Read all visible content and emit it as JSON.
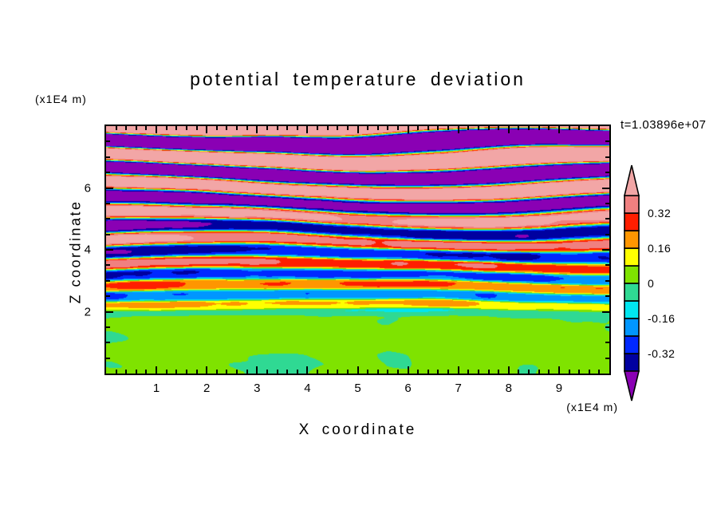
{
  "title": "potential temperature deviation",
  "time_label": "t=1.03896e+07",
  "axes": {
    "x": {
      "label": "X coordinate",
      "unit": "(x1E4 m)",
      "range": [
        0,
        10
      ],
      "major_ticks": [
        1,
        2,
        3,
        4,
        5,
        6,
        7,
        8,
        9
      ],
      "minor_step": 0.2
    },
    "z": {
      "label": "Z coordinate",
      "unit": "(x1E4 m)",
      "range": [
        0,
        8
      ],
      "major_ticks": [
        2,
        4,
        6
      ],
      "minor_step": 0.5
    }
  },
  "colorbar": {
    "labels": [
      {
        "value": 0.32,
        "label": "0.32"
      },
      {
        "value": 0.16,
        "label": "0.16"
      },
      {
        "value": 0,
        "label": "0"
      },
      {
        "value": -0.16,
        "label": "-0.16"
      },
      {
        "value": -0.32,
        "label": "-0.32"
      }
    ],
    "levels": [
      -0.4,
      -0.32,
      -0.24,
      -0.16,
      -0.08,
      0,
      0.08,
      0.16,
      0.24,
      0.32,
      0.4
    ],
    "colors": [
      "#0000A0",
      "#0028FF",
      "#0096FF",
      "#00E6F0",
      "#2FD993",
      "#7FE300",
      "#FFFF00",
      "#FF9600",
      "#FF1E00",
      "#F08080"
    ],
    "under_color": "#8A00B4",
    "over_color": "#F2A6A6"
  },
  "chart_data": {
    "type": "heatmap",
    "title": "potential temperature deviation",
    "xlabel": "X coordinate",
    "ylabel": "Z coordinate",
    "x_unit": "(x1E4 m)",
    "z_unit": "(x1E4 m)",
    "annotation": "t=1.03896e+07",
    "x_range": [
      0,
      10
    ],
    "z_range": [
      0,
      8
    ],
    "x_ticks": [
      1,
      2,
      3,
      4,
      5,
      6,
      7,
      8,
      9
    ],
    "z_ticks": [
      2,
      4,
      6
    ],
    "value_range": [
      -0.4,
      0.4
    ],
    "contour_interval": 0.08,
    "labeled_contours": [
      0.32,
      0.16,
      0,
      -0.16,
      -0.32
    ],
    "description": "Filled-contour field of potential temperature deviation: a near-zero green region with light-green swirls below z~2, thin broken multicolored horizontal stripes (blue/cyan/green/yellow/orange/red) between z~2 and z~5, and thick saturated alternating bands (salmon above +0.4, purple below -0.4) in the upper layers.",
    "procedural_field": {
      "wavelength_base": 0.4,
      "wavelength_growth": 0.09,
      "amp_base": 0.1,
      "amp_growth": 0.105,
      "surface_top": 2.0,
      "surface_mean": -0.055,
      "surface_swirl_amp": 0.12
    }
  }
}
